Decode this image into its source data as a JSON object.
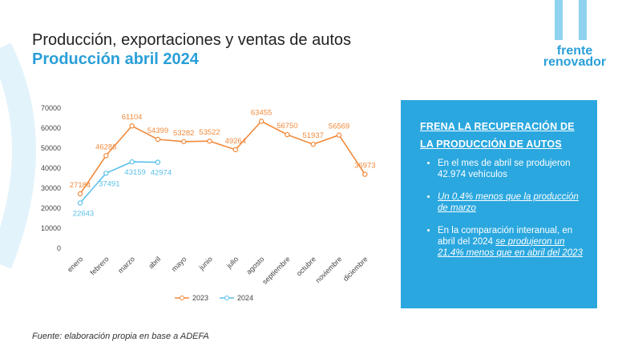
{
  "chart_data": {
    "type": "line",
    "title": "Producción, exportaciones y ventas de autos",
    "subtitle": "Producción abril 2024",
    "categories": [
      "enero",
      "febrero",
      "marzo",
      "abril",
      "mayo",
      "junio",
      "julio",
      "agosto",
      "septiembre",
      "octubre",
      "noviembre",
      "diciembre"
    ],
    "series": [
      {
        "name": "2023",
        "color": "#f08a3c",
        "values": [
          27184,
          46286,
          61104,
          54399,
          53282,
          53522,
          49264,
          63455,
          56750,
          51937,
          56569,
          36973
        ]
      },
      {
        "name": "2024",
        "color": "#5bc0e8",
        "values": [
          22643,
          37491,
          43159,
          42974,
          null,
          null,
          null,
          null,
          null,
          null,
          null,
          null
        ]
      }
    ],
    "ylim": [
      0,
      70000
    ],
    "yticks": [
      0,
      10000,
      20000,
      30000,
      40000,
      50000,
      60000,
      70000
    ],
    "legend": "bottom",
    "data_labels": true
  },
  "logo": [
    "frente",
    "renovador"
  ],
  "box": {
    "heading": [
      "FRENA LA RECUPERACIÓN DE",
      "LA PRODUCCIÓN DE AUTOS"
    ],
    "bullets": [
      [
        "En el mes de abril se produjeron 42.974 vehículos"
      ],
      [
        "Un 0,4% menos que la producción de marzo"
      ],
      [
        "En la comparación interanual, en abril del 2024 ",
        "se produjeron un 21,4% menos que en abril del 2023"
      ]
    ]
  },
  "source": "Fuente: elaboración propia en base a ADEFA"
}
